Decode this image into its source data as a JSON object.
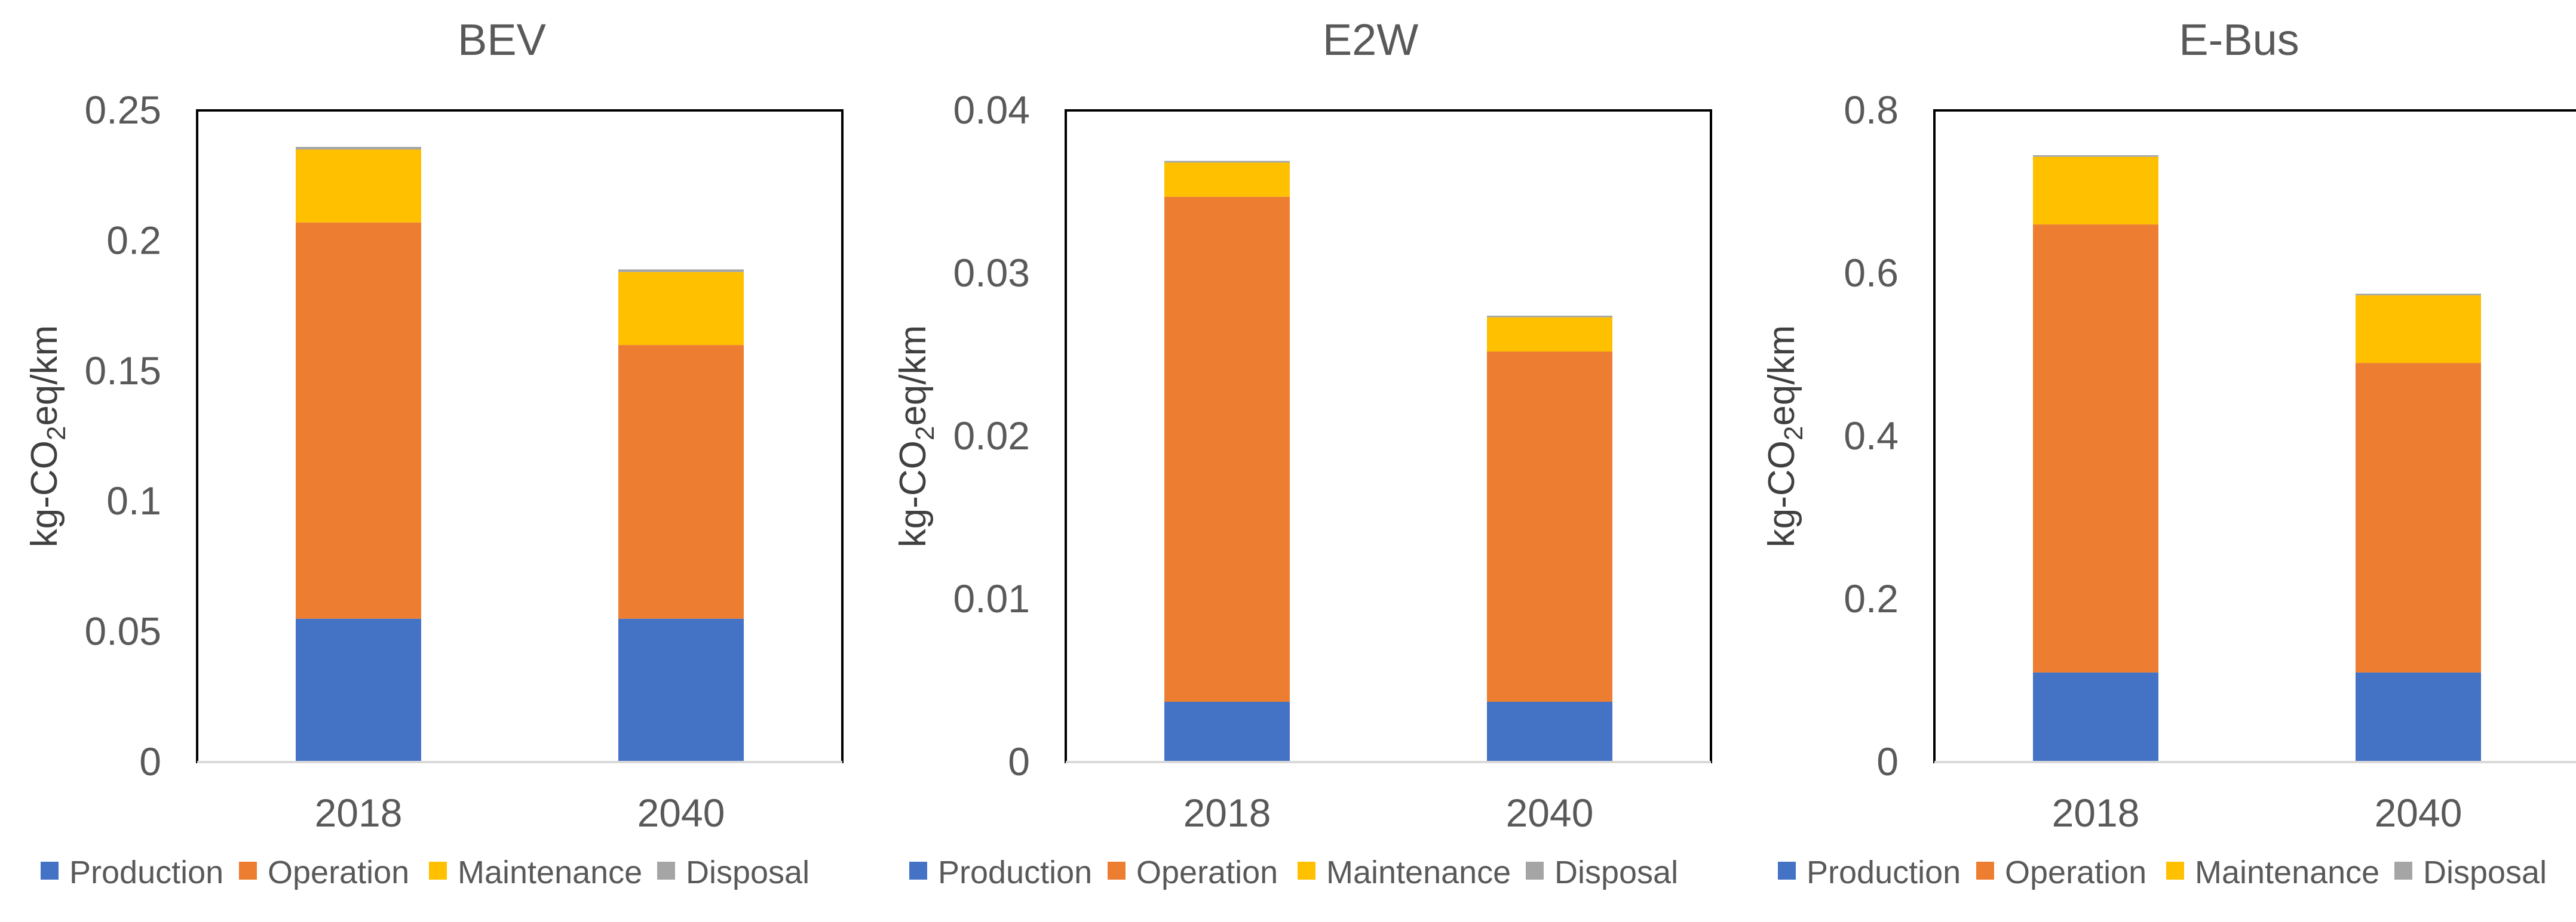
{
  "legend": [
    {
      "name": "Production",
      "color": "#4472C4"
    },
    {
      "name": "Operation",
      "color": "#ED7D31"
    },
    {
      "name": "Maintenance",
      "color": "#FFC000"
    },
    {
      "name": "Disposal",
      "color": "#A5A5A5"
    }
  ],
  "chart_data": [
    {
      "type": "bar",
      "stacked": true,
      "title": "BEV",
      "ylabel": {
        "pre": "kg-CO",
        "sub": "2",
        "post": "eq/km"
      },
      "xlabel": "",
      "categories": [
        "2018",
        "2040"
      ],
      "ylim": [
        0,
        0.25
      ],
      "yticks": [
        "0",
        "0.05",
        "0.1",
        "0.15",
        "0.2",
        "0.25"
      ],
      "series": [
        {
          "name": "Production",
          "color": "#4472C4",
          "values": [
            0.055,
            0.055
          ]
        },
        {
          "name": "Operation",
          "color": "#ED7D31",
          "values": [
            0.152,
            0.105
          ]
        },
        {
          "name": "Maintenance",
          "color": "#FFC000",
          "values": [
            0.028,
            0.028
          ]
        },
        {
          "name": "Disposal",
          "color": "#A5A5A5",
          "values": [
            0.001,
            0.001
          ]
        }
      ],
      "legend_position": "bottom"
    },
    {
      "type": "bar",
      "stacked": true,
      "title": "E2W",
      "ylabel": {
        "pre": "kg-CO",
        "sub": "2",
        "post": "eq/km"
      },
      "xlabel": "",
      "categories": [
        "2018",
        "2040"
      ],
      "ylim": [
        0,
        0.04
      ],
      "yticks": [
        "0",
        "0.01",
        "0.02",
        "0.03",
        "0.04"
      ],
      "series": [
        {
          "name": "Production",
          "color": "#4472C4",
          "values": [
            0.0037,
            0.0037
          ]
        },
        {
          "name": "Operation",
          "color": "#ED7D31",
          "values": [
            0.031,
            0.0215
          ]
        },
        {
          "name": "Maintenance",
          "color": "#FFC000",
          "values": [
            0.0021,
            0.0021
          ]
        },
        {
          "name": "Disposal",
          "color": "#A5A5A5",
          "values": [
            0.0001,
            0.0001
          ]
        }
      ],
      "legend_position": "bottom"
    },
    {
      "type": "bar",
      "stacked": true,
      "title": "E-Bus",
      "ylabel": {
        "pre": "kg-CO",
        "sub": "2",
        "post": "eq/km"
      },
      "xlabel": "",
      "categories": [
        "2018",
        "2040"
      ],
      "ylim": [
        0,
        0.8
      ],
      "yticks": [
        "0",
        "0.2",
        "0.4",
        "0.6",
        "0.8"
      ],
      "series": [
        {
          "name": "Production",
          "color": "#4472C4",
          "values": [
            0.11,
            0.11
          ]
        },
        {
          "name": "Operation",
          "color": "#ED7D31",
          "values": [
            0.55,
            0.38
          ]
        },
        {
          "name": "Maintenance",
          "color": "#FFC000",
          "values": [
            0.083,
            0.083
          ]
        },
        {
          "name": "Disposal",
          "color": "#A5A5A5",
          "values": [
            0.002,
            0.002
          ]
        }
      ],
      "legend_position": "bottom"
    }
  ]
}
